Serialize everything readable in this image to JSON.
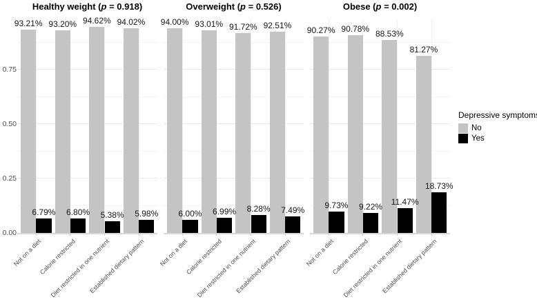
{
  "chart_data": {
    "type": "bar",
    "layout": "faceted-dodged-vertical",
    "categories": [
      "Not on a diet",
      "Calorie restricted",
      "Diet restricted in one nutrient",
      "Established dietary pattern"
    ],
    "facets": [
      {
        "title": "Healthy weight (p = 0.918)",
        "series": [
          {
            "name": "No",
            "values": [
              93.21,
              93.2,
              94.62,
              94.02
            ],
            "labels": [
              "93.21%",
              "93.20%",
              "94.62%",
              "94.02%"
            ]
          },
          {
            "name": "Yes",
            "values": [
              6.79,
              6.8,
              5.38,
              5.98
            ],
            "labels": [
              "6.79%",
              "6.80%",
              "5.38%",
              "5.98%"
            ]
          }
        ]
      },
      {
        "title": "Overweight (p = 0.526)",
        "series": [
          {
            "name": "No",
            "values": [
              94.0,
              93.01,
              91.72,
              92.51
            ],
            "labels": [
              "94.00%",
              "93.01%",
              "91.72%",
              "92.51%"
            ]
          },
          {
            "name": "Yes",
            "values": [
              6.0,
              6.99,
              8.28,
              7.49
            ],
            "labels": [
              "6.00%",
              "6.99%",
              "8.28%",
              "7.49%"
            ]
          }
        ]
      },
      {
        "title": "Obese (p = 0.002)",
        "series": [
          {
            "name": "No",
            "values": [
              90.27,
              90.78,
              88.53,
              81.27
            ],
            "labels": [
              "90.27%",
              "90.78%",
              "88.53%",
              "81.27%"
            ]
          },
          {
            "name": "Yes",
            "values": [
              9.73,
              9.22,
              11.47,
              18.73
            ],
            "labels": [
              "9.73%",
              "9.22%",
              "11.47%",
              "18.73%"
            ]
          }
        ]
      }
    ],
    "y_axis": {
      "ticks": [
        "0.00",
        "0.25",
        "0.50",
        "0.75"
      ],
      "tick_values": [
        0,
        0.25,
        0.5,
        0.75
      ],
      "minor_values": [
        0.125,
        0.375,
        0.625,
        0.875
      ],
      "range": [
        0,
        0.98
      ],
      "grid": true
    },
    "legend": {
      "title": "Depressive symptoms",
      "position": "right",
      "entries": [
        {
          "label": "No",
          "color": "#c4c4c4"
        },
        {
          "label": "Yes",
          "color": "#000000"
        }
      ]
    },
    "colors": {
      "bar_no": "#c4c4c4",
      "bar_yes": "#000000",
      "grid_major": "#e9e9e9",
      "grid_minor": "#f4f4f4",
      "grid_vertical": "#f0f0f0",
      "axis_line": "#d8d8d8",
      "axis_text": "#4d4d4d"
    }
  }
}
